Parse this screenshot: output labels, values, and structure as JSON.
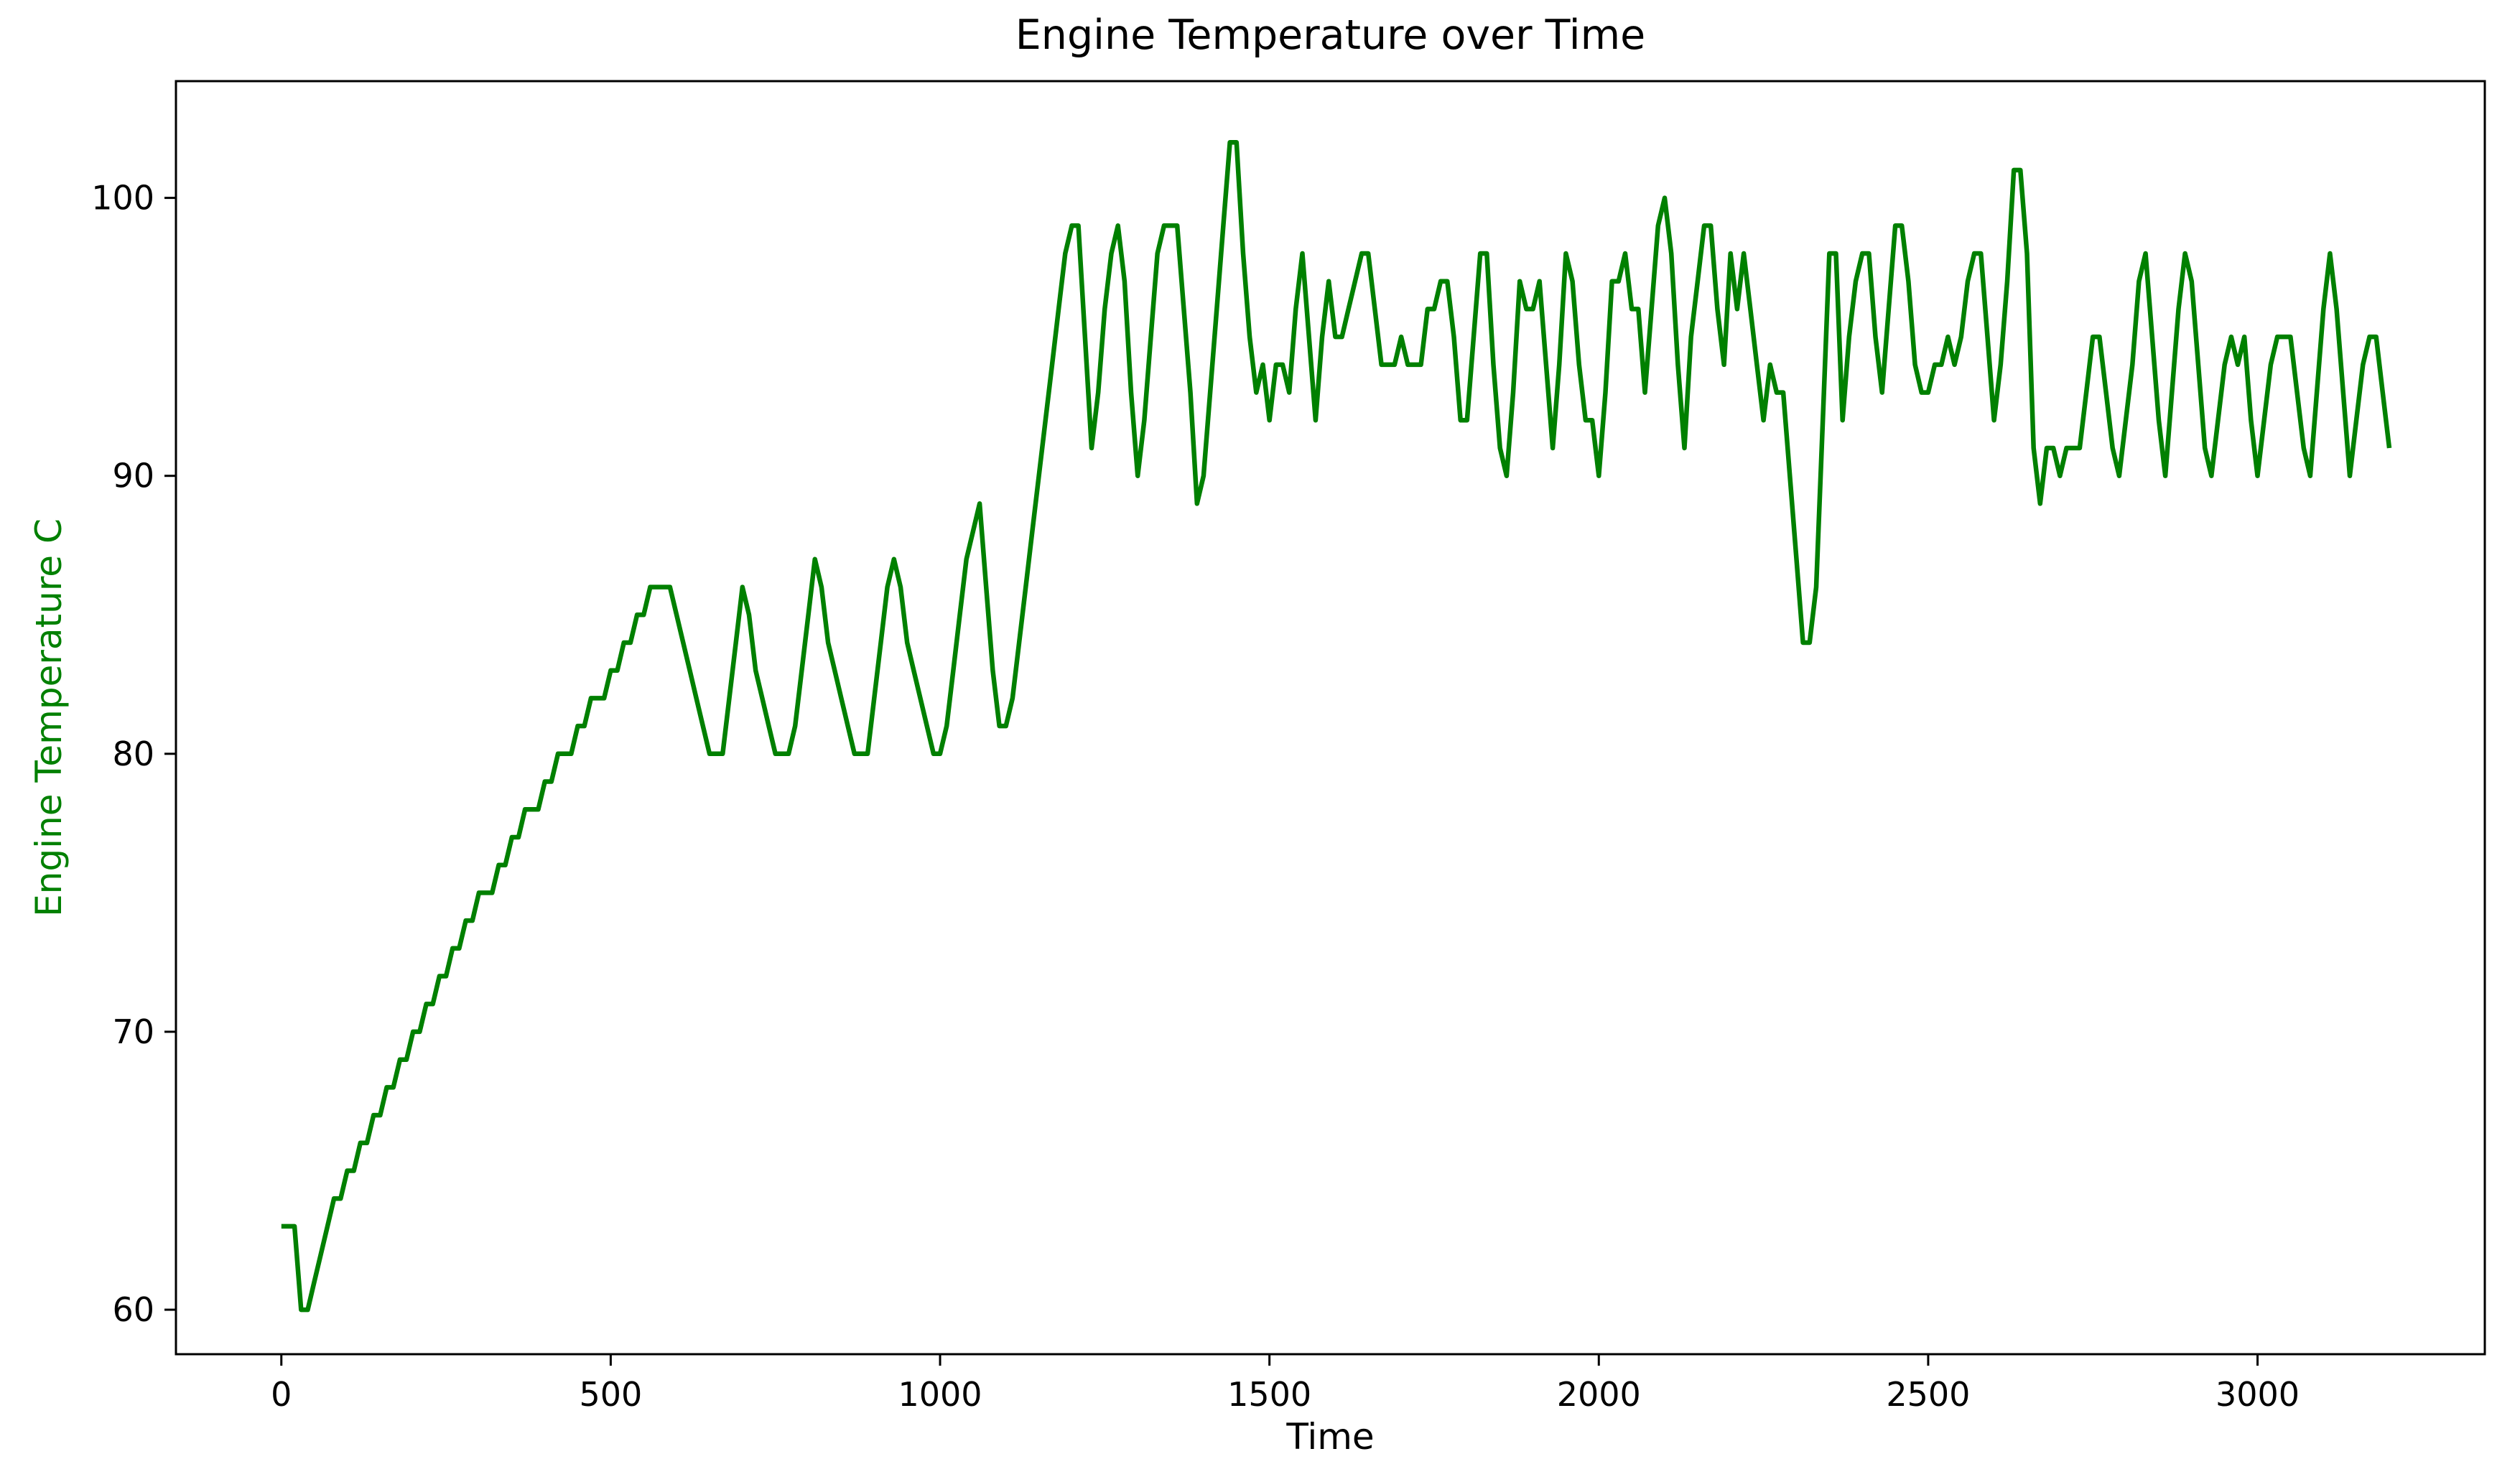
{
  "chart_data": {
    "type": "line",
    "title": "Engine Temperature over Time",
    "xlabel": "Time",
    "ylabel": "Engine Temperature C",
    "series_name": "Engine Temperature",
    "series_color": "#008000",
    "ylabel_color": "#008000",
    "text_color": "#000000",
    "background_color": "#ffffff",
    "grid": false,
    "legend": "none",
    "x_ticks": [
      0,
      500,
      1000,
      1500,
      2000,
      2500,
      3000
    ],
    "x_tick_labels": [
      "0",
      "500",
      "1000",
      "1500",
      "2000",
      "2500",
      "3000"
    ],
    "y_ticks": [
      60,
      70,
      80,
      90,
      100
    ],
    "y_tick_labels": [
      "60",
      "70",
      "80",
      "90",
      "100"
    ],
    "xlim": [
      -160,
      3345
    ],
    "ylim": [
      58.4,
      104.2
    ],
    "x_start": 0,
    "x_step": 10,
    "n_points": 321,
    "y_min": 60,
    "y_max": 102,
    "y": [
      63,
      63,
      63,
      60,
      60,
      61,
      62,
      63,
      64,
      64,
      65,
      65,
      66,
      66,
      67,
      67,
      68,
      68,
      69,
      69,
      70,
      70,
      71,
      71,
      72,
      72,
      73,
      73,
      74,
      74,
      75,
      75,
      75,
      76,
      76,
      77,
      77,
      78,
      78,
      78,
      79,
      79,
      80,
      80,
      80,
      81,
      81,
      82,
      82,
      82,
      83,
      83,
      84,
      84,
      85,
      85,
      86,
      86,
      86,
      86,
      85,
      84,
      83,
      82,
      81,
      80,
      80,
      80,
      82,
      84,
      86,
      85,
      83,
      82,
      81,
      80,
      80,
      80,
      81,
      83,
      85,
      87,
      86,
      84,
      83,
      82,
      81,
      80,
      80,
      80,
      82,
      84,
      86,
      87,
      86,
      84,
      83,
      82,
      81,
      80,
      80,
      81,
      83,
      85,
      87,
      88,
      89,
      86,
      83,
      81,
      81,
      82,
      84,
      86,
      88,
      90,
      92,
      94,
      96,
      98,
      99,
      99,
      95,
      91,
      93,
      96,
      98,
      99,
      97,
      93,
      90,
      92,
      95,
      98,
      99,
      99,
      99,
      96,
      93,
      89,
      90,
      93,
      96,
      99,
      102,
      102,
      98,
      95,
      93,
      94,
      92,
      94,
      94,
      93,
      96,
      98,
      95,
      92,
      95,
      97,
      95,
      95,
      96,
      97,
      98,
      98,
      96,
      94,
      94,
      94,
      95,
      94,
      94,
      94,
      96,
      96,
      97,
      97,
      95,
      92,
      92,
      95,
      98,
      98,
      94,
      91,
      90,
      93,
      97,
      96,
      96,
      97,
      94,
      91,
      94,
      98,
      97,
      94,
      92,
      92,
      90,
      93,
      97,
      97,
      98,
      96,
      96,
      93,
      96,
      99,
      100,
      98,
      94,
      91,
      95,
      97,
      99,
      99,
      96,
      94,
      98,
      96,
      98,
      96,
      94,
      92,
      94,
      93,
      93,
      90,
      87,
      84,
      84,
      86,
      92,
      98,
      98,
      92,
      95,
      97,
      98,
      98,
      95,
      93,
      96,
      99,
      99,
      97,
      94,
      93,
      93,
      94,
      94,
      95,
      94,
      95,
      97,
      98,
      98,
      95,
      92,
      94,
      97,
      101,
      101,
      98,
      91,
      89,
      91,
      91,
      90,
      91,
      91,
      91,
      93,
      95,
      95,
      93,
      91,
      90,
      92,
      94,
      97,
      98,
      95,
      92,
      90,
      93,
      96,
      98,
      97,
      94,
      91,
      90,
      92,
      94,
      95,
      94,
      95,
      92,
      90,
      92,
      94,
      95,
      95,
      95,
      93,
      91,
      90,
      93,
      96,
      98,
      96,
      93,
      90,
      92,
      94,
      95,
      95,
      93,
      91
    ]
  }
}
